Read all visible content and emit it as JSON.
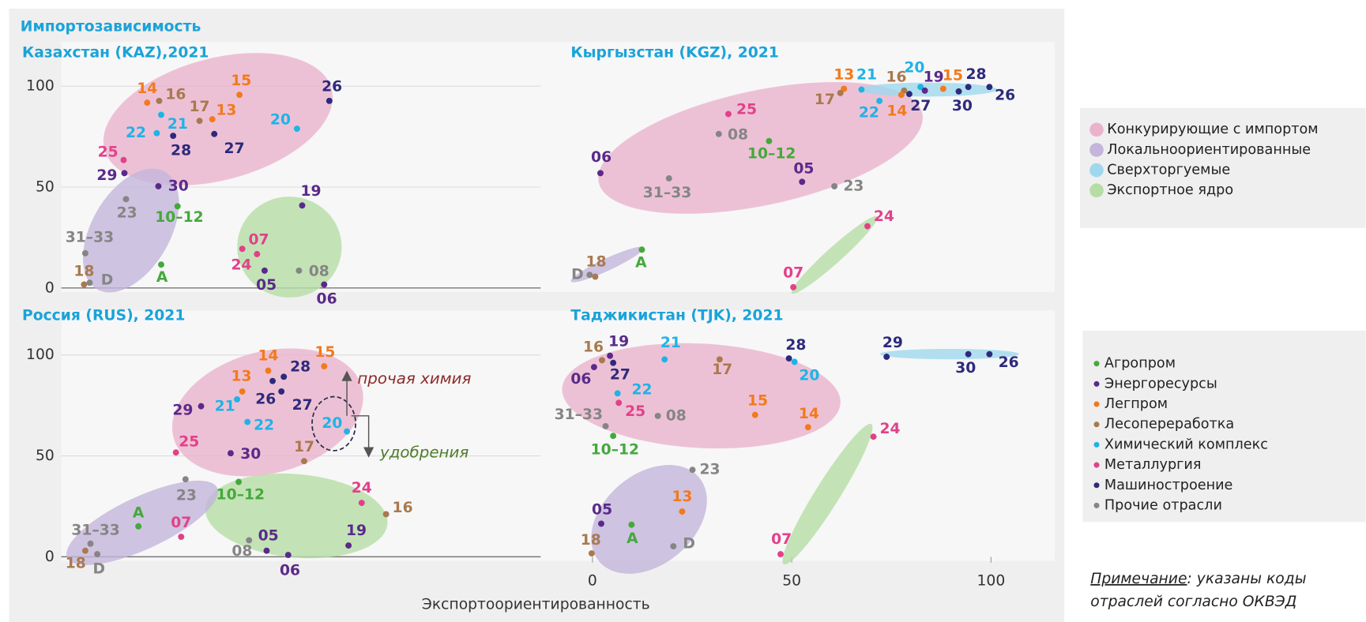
{
  "figure": {
    "y_axis_label": "Импортозависимость",
    "x_axis_label": "Экспортоориентированность",
    "zone_legend": [
      {
        "name": "Конкурирующие с импортом",
        "color": "#eab3cc"
      },
      {
        "name": "Локальноориентированные",
        "color": "#c3b5db"
      },
      {
        "name": "Сверхторгуемые",
        "color": "#9fd8ee"
      },
      {
        "name": "Экспортное ядро",
        "color": "#b5dda5"
      }
    ],
    "sector_legend": [
      {
        "name": "Агропром",
        "color": "#46a83c"
      },
      {
        "name": "Энергоресурсы",
        "color": "#5a2a8a"
      },
      {
        "name": "Легпром",
        "color": "#f27a1d"
      },
      {
        "name": "Лесопереработка",
        "color": "#a9794f"
      },
      {
        "name": "Химический комплекс",
        "color": "#1fb3e6"
      },
      {
        "name": "Металлургия",
        "color": "#e2418a"
      },
      {
        "name": "Машиностроение",
        "color": "#2d2a7c"
      },
      {
        "name": "Прочие отрасли",
        "color": "#858585"
      }
    ],
    "note": {
      "label": "Примечание",
      "lines": [
        ": указаны коды",
        "отраслей согласно ОКВЭД"
      ]
    }
  },
  "chart_data": [
    {
      "type": "scatter",
      "title": "Казахстан (KAZ),2021",
      "xlim": [
        -4,
        116
      ],
      "ylim": [
        -2,
        122
      ],
      "yticks": [
        0,
        50,
        100
      ],
      "grid": true,
      "points": [
        {
          "label": "14",
          "x": 17.5,
          "y": 91.8,
          "color": "#f27a1d"
        },
        {
          "label": "16",
          "x": 20.5,
          "y": 92.7,
          "color": "#a9794f"
        },
        {
          "label": "15",
          "x": 40.6,
          "y": 95.7,
          "color": "#f27a1d"
        },
        {
          "label": "26",
          "x": 63.1,
          "y": 92.7,
          "color": "#2d2a7c"
        },
        {
          "label": "17",
          "x": 30.6,
          "y": 82.8,
          "color": "#a9794f"
        },
        {
          "label": "13",
          "x": 33.8,
          "y": 83.6,
          "color": "#f27a1d"
        },
        {
          "label": "21",
          "x": 21,
          "y": 85.8,
          "color": "#1fb3e6"
        },
        {
          "label": "22",
          "x": 19.9,
          "y": 76.7,
          "color": "#1fb3e6"
        },
        {
          "label": "28",
          "x": 24,
          "y": 75.4,
          "color": "#2d2a7c"
        },
        {
          "label": "27",
          "x": 34.3,
          "y": 76.3,
          "color": "#2d2a7c"
        },
        {
          "label": "20",
          "x": 55,
          "y": 78.9,
          "color": "#1fb3e6"
        },
        {
          "label": "25",
          "x": 11.6,
          "y": 63.4,
          "color": "#e2418a"
        },
        {
          "label": "29",
          "x": 11.8,
          "y": 56.9,
          "color": "#5a2a8a"
        },
        {
          "label": "30",
          "x": 20.3,
          "y": 50.4,
          "color": "#5a2a8a"
        },
        {
          "label": "23",
          "x": 12.2,
          "y": 44,
          "color": "#858585"
        },
        {
          "label": "10–12",
          "x": 25.1,
          "y": 40.5,
          "color": "#46a83c"
        },
        {
          "label": "19",
          "x": 56.3,
          "y": 40.9,
          "color": "#5a2a8a"
        },
        {
          "label": "31–33",
          "x": 2,
          "y": 17.2,
          "color": "#858585"
        },
        {
          "label": "A",
          "x": 21,
          "y": 11.6,
          "color": "#46a83c"
        },
        {
          "label": "07",
          "x": 45,
          "y": 16.8,
          "color": "#e2418a"
        },
        {
          "label": "24",
          "x": 41.3,
          "y": 19.4,
          "color": "#e2418a"
        },
        {
          "label": "08",
          "x": 55.5,
          "y": 8.6,
          "color": "#858585"
        },
        {
          "label": "05",
          "x": 46.9,
          "y": 8.6,
          "color": "#5a2a8a"
        },
        {
          "label": "06",
          "x": 61.8,
          "y": 1.7,
          "color": "#5a2a8a"
        },
        {
          "label": "18",
          "x": 1.7,
          "y": 1.7,
          "color": "#a9794f"
        },
        {
          "label": "D",
          "x": 3.1,
          "y": 2.6,
          "color": "#858585"
        }
      ]
    },
    {
      "type": "scatter",
      "title": "Кыргызстан (KGZ), 2021",
      "xlim": [
        -13,
        116
      ],
      "ylim": [
        -2,
        122
      ],
      "points": [
        {
          "label": "13",
          "x": 63.1,
          "y": 98.7,
          "color": "#f27a1d"
        },
        {
          "label": "21",
          "x": 67.5,
          "y": 98.3,
          "color": "#1fb3e6"
        },
        {
          "label": "16",
          "x": 78.2,
          "y": 97.8,
          "color": "#a9794f"
        },
        {
          "label": "20",
          "x": 82.3,
          "y": 99.6,
          "color": "#1fb3e6"
        },
        {
          "label": "19",
          "x": 83.4,
          "y": 97.8,
          "color": "#5a2a8a"
        },
        {
          "label": "15",
          "x": 88,
          "y": 98.7,
          "color": "#f27a1d"
        },
        {
          "label": "28",
          "x": 94.3,
          "y": 99.6,
          "color": "#2d2a7c"
        },
        {
          "label": "26",
          "x": 99.6,
          "y": 99.6,
          "color": "#2d2a7c"
        },
        {
          "label": "30",
          "x": 91.9,
          "y": 97.4,
          "color": "#2d2a7c"
        },
        {
          "label": "27",
          "x": 79.5,
          "y": 96.1,
          "color": "#2d2a7c"
        },
        {
          "label": "14",
          "x": 77.5,
          "y": 95.7,
          "color": "#f27a1d"
        },
        {
          "label": "22",
          "x": 72,
          "y": 92.7,
          "color": "#1fb3e6"
        },
        {
          "label": "17",
          "x": 62.2,
          "y": 96.6,
          "color": "#a9794f"
        },
        {
          "label": "25",
          "x": 34.1,
          "y": 86.2,
          "color": "#e2418a"
        },
        {
          "label": "08",
          "x": 31.7,
          "y": 76.3,
          "color": "#858585"
        },
        {
          "label": "10–12",
          "x": 44.3,
          "y": 72.8,
          "color": "#46a83c"
        },
        {
          "label": "06",
          "x": 2,
          "y": 56.9,
          "color": "#5a2a8a"
        },
        {
          "label": "05",
          "x": 52.6,
          "y": 52.6,
          "color": "#5a2a8a"
        },
        {
          "label": "31–33",
          "x": 19.2,
          "y": 54.3,
          "color": "#858585"
        },
        {
          "label": "23",
          "x": 60.7,
          "y": 50.4,
          "color": "#858585"
        },
        {
          "label": "24",
          "x": 69,
          "y": 30.6,
          "color": "#e2418a"
        },
        {
          "label": "18",
          "x": 0.7,
          "y": 5.6,
          "color": "#a9794f"
        },
        {
          "label": "D",
          "x": -0.7,
          "y": 6.5,
          "color": "#858585"
        },
        {
          "label": "A",
          "x": 12.4,
          "y": 19,
          "color": "#46a83c"
        },
        {
          "label": "07",
          "x": 50.4,
          "y": 0.4,
          "color": "#e2418a"
        }
      ]
    },
    {
      "type": "scatter",
      "title": "Россия (RUS), 2021",
      "xlim": [
        -4,
        116
      ],
      "ylim": [
        -2,
        122
      ],
      "yticks": [
        0,
        50,
        100
      ],
      "grid": true,
      "annotations": [
        {
          "text": "прочая химия",
          "color": "#8e2b2b"
        },
        {
          "text": "удобрения",
          "color": "#4f7d2a"
        }
      ],
      "points": [
        {
          "label": "14",
          "x": 47.8,
          "y": 92.2,
          "color": "#f27a1d"
        },
        {
          "label": "15",
          "x": 61.8,
          "y": 94.4,
          "color": "#f27a1d"
        },
        {
          "label": "28",
          "x": 51.7,
          "y": 89.2,
          "color": "#2d2a7c"
        },
        {
          "label": "13",
          "x": 41.3,
          "y": 81.9,
          "color": "#f27a1d"
        },
        {
          "label": "26",
          "x": 48.9,
          "y": 87.1,
          "color": "#2d2a7c"
        },
        {
          "label": "27",
          "x": 51.1,
          "y": 81.9,
          "color": "#2d2a7c"
        },
        {
          "label": "21",
          "x": 40,
          "y": 78,
          "color": "#1fb3e6"
        },
        {
          "label": "29",
          "x": 31,
          "y": 74.6,
          "color": "#5a2a8a"
        },
        {
          "label": "22",
          "x": 42.6,
          "y": 66.8,
          "color": "#1fb3e6"
        },
        {
          "label": "20",
          "x": 67.5,
          "y": 62.1,
          "color": "#1fb3e6"
        },
        {
          "label": "25",
          "x": 24.7,
          "y": 51.7,
          "color": "#e2418a"
        },
        {
          "label": "30",
          "x": 38.4,
          "y": 51.3,
          "color": "#5a2a8a"
        },
        {
          "label": "17",
          "x": 56.8,
          "y": 47.4,
          "color": "#a9794f"
        },
        {
          "label": "23",
          "x": 27.1,
          "y": 38.4,
          "color": "#858585"
        },
        {
          "label": "10–12",
          "x": 40.4,
          "y": 37.1,
          "color": "#46a83c"
        },
        {
          "label": "A",
          "x": 15.3,
          "y": 15.1,
          "color": "#46a83c"
        },
        {
          "label": "07",
          "x": 26,
          "y": 9.9,
          "color": "#e2418a"
        },
        {
          "label": "24",
          "x": 71.2,
          "y": 26.7,
          "color": "#e2418a"
        },
        {
          "label": "16",
          "x": 77.3,
          "y": 21.1,
          "color": "#a9794f"
        },
        {
          "label": "31–33",
          "x": 3.3,
          "y": 6.5,
          "color": "#858585"
        },
        {
          "label": "18",
          "x": 2,
          "y": 3,
          "color": "#a9794f"
        },
        {
          "label": "D",
          "x": 5,
          "y": 1.3,
          "color": "#858585"
        },
        {
          "label": "08",
          "x": 43,
          "y": 8.2,
          "color": "#858585"
        },
        {
          "label": "05",
          "x": 47.4,
          "y": 3,
          "color": "#5a2a8a"
        },
        {
          "label": "06",
          "x": 52.8,
          "y": 0.9,
          "color": "#5a2a8a"
        },
        {
          "label": "19",
          "x": 67.9,
          "y": 5.6,
          "color": "#5a2a8a"
        }
      ]
    },
    {
      "type": "scatter",
      "title": "Таджикистан (TJK), 2021",
      "xlim": [
        -13,
        116
      ],
      "ylim": [
        -2,
        122
      ],
      "xticks": [
        0,
        50,
        100
      ],
      "points": [
        {
          "label": "16",
          "x": 2.4,
          "y": 97.4,
          "color": "#a9794f"
        },
        {
          "label": "19",
          "x": 4.4,
          "y": 99.6,
          "color": "#5a2a8a"
        },
        {
          "label": "06",
          "x": 0.4,
          "y": 94,
          "color": "#5a2a8a"
        },
        {
          "label": "27",
          "x": 5.2,
          "y": 96.1,
          "color": "#2d2a7c"
        },
        {
          "label": "21",
          "x": 18.1,
          "y": 97.8,
          "color": "#1fb3e6"
        },
        {
          "label": "22",
          "x": 6.3,
          "y": 81,
          "color": "#1fb3e6"
        },
        {
          "label": "25",
          "x": 6.6,
          "y": 76.3,
          "color": "#e2418a"
        },
        {
          "label": "08",
          "x": 16.4,
          "y": 69.8,
          "color": "#858585"
        },
        {
          "label": "31–33",
          "x": 3.3,
          "y": 64.7,
          "color": "#858585"
        },
        {
          "label": "10–12",
          "x": 5.2,
          "y": 59.9,
          "color": "#46a83c"
        },
        {
          "label": "17",
          "x": 31.9,
          "y": 97.8,
          "color": "#a9794f"
        },
        {
          "label": "28",
          "x": 49.3,
          "y": 98.3,
          "color": "#2d2a7c"
        },
        {
          "label": "20",
          "x": 50.7,
          "y": 96.6,
          "color": "#1fb3e6"
        },
        {
          "label": "15",
          "x": 40.8,
          "y": 70.3,
          "color": "#f27a1d"
        },
        {
          "label": "14",
          "x": 54.1,
          "y": 64.2,
          "color": "#f27a1d"
        },
        {
          "label": "24",
          "x": 70.5,
          "y": 59.5,
          "color": "#e2418a"
        },
        {
          "label": "29",
          "x": 73.8,
          "y": 99.1,
          "color": "#2d2a7c"
        },
        {
          "label": "30",
          "x": 94.3,
          "y": 100.4,
          "color": "#2d2a7c"
        },
        {
          "label": "26",
          "x": 99.6,
          "y": 100.4,
          "color": "#2d2a7c"
        },
        {
          "label": "23",
          "x": 25.1,
          "y": 43.1,
          "color": "#858585"
        },
        {
          "label": "05",
          "x": 2.2,
          "y": 16.4,
          "color": "#5a2a8a"
        },
        {
          "label": "13",
          "x": 22.5,
          "y": 22.4,
          "color": "#f27a1d"
        },
        {
          "label": "A",
          "x": 9.8,
          "y": 15.9,
          "color": "#46a83c"
        },
        {
          "label": "D",
          "x": 20.3,
          "y": 5.2,
          "color": "#858585"
        },
        {
          "label": "18",
          "x": -0.2,
          "y": 1.7,
          "color": "#a9794f"
        },
        {
          "label": "07",
          "x": 47.2,
          "y": 1.3,
          "color": "#e2418a"
        }
      ]
    }
  ]
}
